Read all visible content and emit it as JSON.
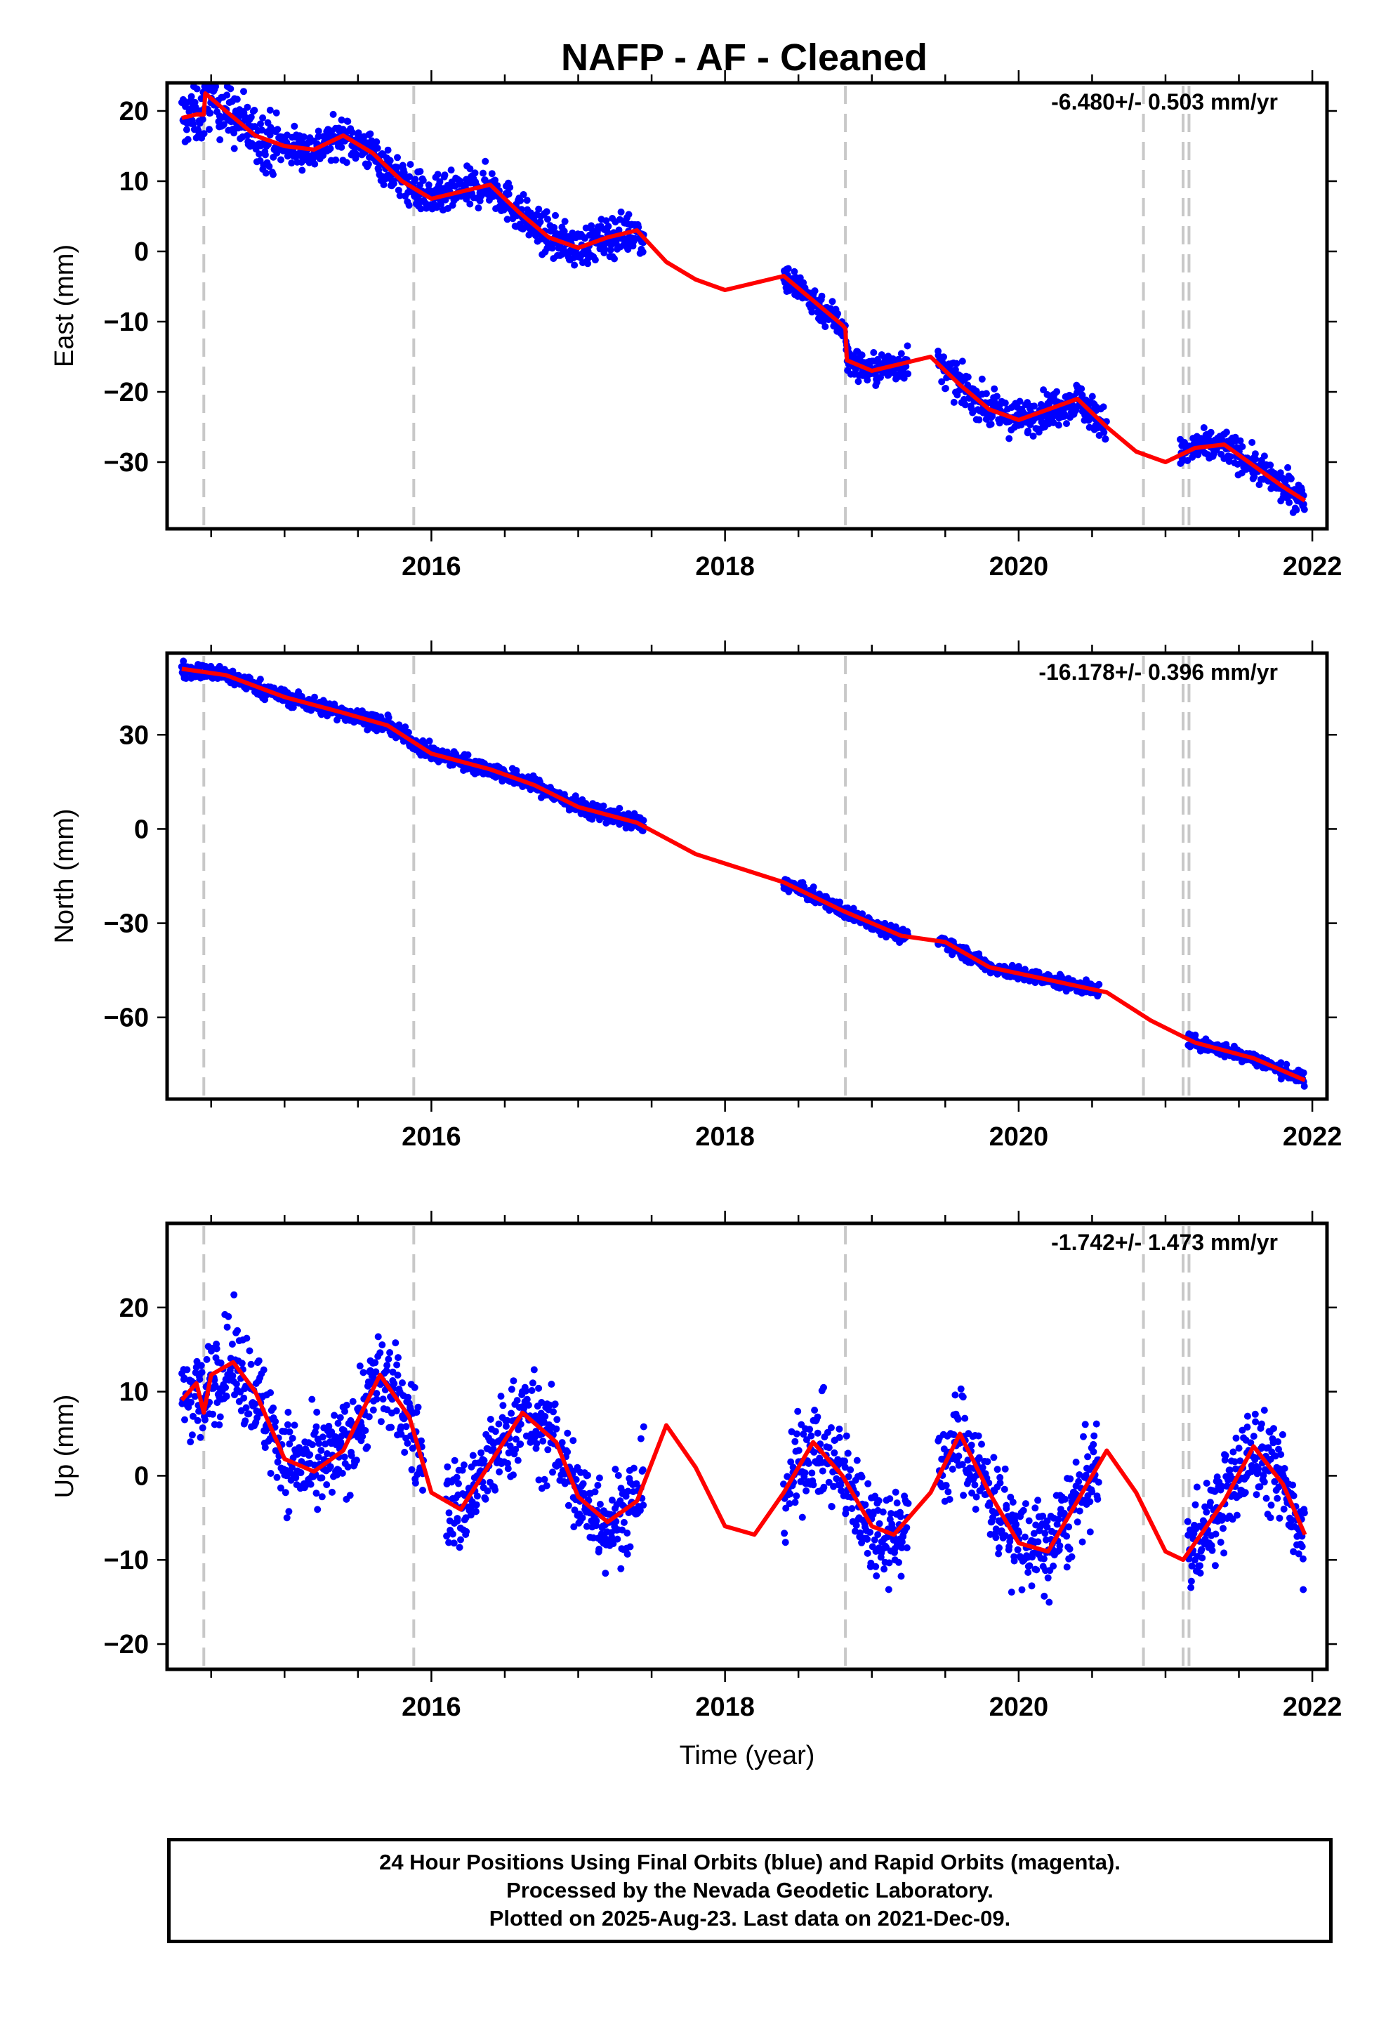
{
  "title": "NAFP  - AF - Cleaned",
  "xlabel": "Time (year)",
  "footer": {
    "line1": "24 Hour Positions Using Final Orbits (blue) and Rapid Orbits (magenta).",
    "line2": "Processed by the Nevada Geodetic Laboratory.",
    "line3": "Plotted on 2025-Aug-23. Last data on 2021-Dec-09."
  },
  "colors": {
    "data": "#0000ff",
    "model": "#ff0000",
    "steps": "#c8c8c8",
    "axes": "#000000"
  },
  "chart_data": [
    {
      "type": "scatter",
      "component": "East",
      "ylabel": "East (mm)",
      "rate": "-6.480+/- 0.503 mm/yr",
      "xlim": [
        2014.2,
        2022.1
      ],
      "ylim": [
        -39.5,
        24
      ],
      "yticks": [
        20,
        10,
        0,
        -10,
        -20,
        -30
      ],
      "xticks": [
        2016,
        2018,
        2020,
        2022
      ],
      "steps": [
        2014.45,
        2015.88,
        2018.82,
        2020.85,
        2021.12,
        2021.16
      ],
      "series": [
        {
          "style": "model-line",
          "x": [
            2014.3,
            2014.4,
            2014.45,
            2014.46,
            2014.6,
            2014.8,
            2015.0,
            2015.2,
            2015.4,
            2015.6,
            2015.8,
            2016.0,
            2016.2,
            2016.4,
            2016.6,
            2016.8,
            2017.0,
            2017.2,
            2017.4,
            2017.6,
            2017.8,
            2018.0,
            2018.2,
            2018.4,
            2018.6,
            2018.8,
            2018.82,
            2018.83,
            2019.0,
            2019.2,
            2019.4,
            2019.6,
            2019.8,
            2020.0,
            2020.2,
            2020.4,
            2020.6,
            2020.8,
            2021.0,
            2021.2,
            2021.4,
            2021.6,
            2021.8,
            2021.95
          ],
          "y": [
            19,
            19.5,
            19.5,
            22.5,
            20,
            16.5,
            15,
            14.5,
            16.5,
            14,
            10,
            7.5,
            8.5,
            9.5,
            5.5,
            2,
            0.5,
            2,
            3,
            -1.5,
            -4,
            -5.5,
            -4.5,
            -3.5,
            -7,
            -10.5,
            -11,
            -15.5,
            -17,
            -16,
            -15,
            -19,
            -22.5,
            -24,
            -22.5,
            -21,
            -25,
            -28.5,
            -30,
            -28,
            -27.5,
            -30.5,
            -33.5,
            -35.5
          ]
        }
      ],
      "data_segments": [
        {
          "x0": 2014.3,
          "x1": 2014.95,
          "spread": 3.0
        },
        {
          "x0": 2014.95,
          "x1": 2017.45,
          "spread": 2.0
        },
        {
          "x0": 2018.4,
          "x1": 2019.25,
          "spread": 1.6
        },
        {
          "x0": 2019.45,
          "x1": 2020.6,
          "spread": 1.8
        },
        {
          "x0": 2021.1,
          "x1": 2021.95,
          "spread": 1.6
        }
      ]
    },
    {
      "type": "scatter",
      "component": "North",
      "ylabel": "North (mm)",
      "rate": "-16.178+/- 0.396 mm/yr",
      "xlim": [
        2014.2,
        2022.1
      ],
      "ylim": [
        -86,
        56
      ],
      "yticks": [
        30,
        0,
        -30,
        -60
      ],
      "xticks": [
        2016,
        2018,
        2020,
        2022
      ],
      "steps": [
        2014.45,
        2015.88,
        2018.82,
        2020.85,
        2021.12,
        2021.16
      ],
      "series": [
        {
          "style": "model-line",
          "x": [
            2014.3,
            2014.6,
            2015.0,
            2015.4,
            2015.7,
            2016.0,
            2016.4,
            2016.7,
            2017.0,
            2017.4,
            2017.8,
            2018.0,
            2018.4,
            2018.8,
            2019.2,
            2019.5,
            2019.8,
            2020.2,
            2020.6,
            2020.9,
            2021.2,
            2021.6,
            2021.95
          ],
          "y": [
            51,
            49,
            42,
            37,
            33,
            24,
            19,
            14,
            7,
            2,
            -8,
            -11,
            -17,
            -26,
            -34,
            -36,
            -44,
            -48,
            -52,
            -61,
            -68,
            -73,
            -80
          ]
        }
      ],
      "data_segments": [
        {
          "x0": 2014.3,
          "x1": 2017.45,
          "spread": 1.8
        },
        {
          "x0": 2018.4,
          "x1": 2019.25,
          "spread": 1.5
        },
        {
          "x0": 2019.45,
          "x1": 2020.55,
          "spread": 1.5
        },
        {
          "x0": 2021.15,
          "x1": 2021.95,
          "spread": 1.5
        }
      ]
    },
    {
      "type": "scatter",
      "component": "Up",
      "ylabel": "Up (mm)",
      "rate": "-1.742+/- 1.473 mm/yr",
      "xlim": [
        2014.2,
        2022.1
      ],
      "ylim": [
        -23,
        30
      ],
      "yticks": [
        20,
        10,
        0,
        -10,
        -20
      ],
      "xticks": [
        2016,
        2018,
        2020,
        2022
      ],
      "steps": [
        2014.45,
        2015.88,
        2018.82,
        2020.85,
        2021.12,
        2021.16
      ],
      "series": [
        {
          "style": "model-line",
          "x": [
            2014.3,
            2014.4,
            2014.45,
            2014.5,
            2014.65,
            2014.8,
            2015.0,
            2015.2,
            2015.4,
            2015.65,
            2015.85,
            2016.0,
            2016.2,
            2016.4,
            2016.62,
            2016.85,
            2017.0,
            2017.2,
            2017.4,
            2017.6,
            2017.8,
            2018.0,
            2018.2,
            2018.4,
            2018.6,
            2018.8,
            2019.0,
            2019.15,
            2019.4,
            2019.6,
            2019.8,
            2020.0,
            2020.2,
            2020.4,
            2020.6,
            2020.8,
            2021.0,
            2021.12,
            2021.2,
            2021.4,
            2021.6,
            2021.8,
            2021.95
          ],
          "y": [
            9,
            11,
            7.5,
            12,
            13.5,
            10,
            2,
            0.5,
            3,
            12,
            7,
            -2,
            -4,
            1.5,
            7.5,
            4,
            -2.5,
            -5.5,
            -3,
            6,
            1,
            -6,
            -7,
            -2,
            4,
            0,
            -6,
            -7,
            -2,
            5,
            -2,
            -8,
            -9,
            -3,
            3,
            -2,
            -9,
            -10,
            -8,
            -3,
            3.5,
            -1,
            -7
          ]
        }
      ],
      "data_segments": [
        {
          "x0": 2014.3,
          "x1": 2015.95,
          "spread": 4.0
        },
        {
          "x0": 2016.1,
          "x1": 2017.45,
          "spread": 4.0
        },
        {
          "x0": 2018.4,
          "x1": 2019.25,
          "spread": 4.0
        },
        {
          "x0": 2019.45,
          "x1": 2020.55,
          "spread": 4.0
        },
        {
          "x0": 2021.15,
          "x1": 2021.95,
          "spread": 4.0
        }
      ]
    }
  ]
}
